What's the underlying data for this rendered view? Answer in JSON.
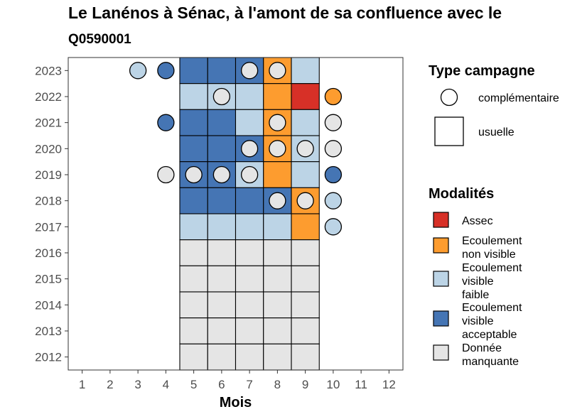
{
  "chart_data": {
    "type": "heatmap",
    "title": "Le Lanénos à Sénac, à l'amont de sa confluence avec le",
    "subtitle": "Q0590001",
    "xlabel": "Mois",
    "ylabel": "",
    "x_ticks": [
      "1",
      "2",
      "3",
      "4",
      "5",
      "6",
      "7",
      "8",
      "9",
      "10",
      "11",
      "12"
    ],
    "y_ticks": [
      "2023",
      "2022",
      "2021",
      "2020",
      "2019",
      "2018",
      "2017",
      "2016",
      "2015",
      "2014",
      "2013",
      "2012"
    ],
    "colors": {
      "Assec": "#d73027",
      "Ecoulement non visible": "#fd9c2f",
      "Ecoulement visible faible": "#bcd4e6",
      "Ecoulement visible acceptable": "#4575b4",
      "Donnée manquante": "#e5e5e5"
    },
    "cells": [
      {
        "year": 2023,
        "month": 5,
        "status": "Ecoulement visible acceptable"
      },
      {
        "year": 2023,
        "month": 6,
        "status": "Ecoulement visible acceptable"
      },
      {
        "year": 2023,
        "month": 7,
        "status": "Ecoulement visible acceptable"
      },
      {
        "year": 2023,
        "month": 8,
        "status": "Ecoulement non visible"
      },
      {
        "year": 2023,
        "month": 9,
        "status": "Ecoulement visible faible"
      },
      {
        "year": 2022,
        "month": 5,
        "status": "Ecoulement visible faible"
      },
      {
        "year": 2022,
        "month": 6,
        "status": "Ecoulement visible faible"
      },
      {
        "year": 2022,
        "month": 7,
        "status": "Ecoulement visible faible"
      },
      {
        "year": 2022,
        "month": 8,
        "status": "Ecoulement non visible"
      },
      {
        "year": 2022,
        "month": 9,
        "status": "Assec"
      },
      {
        "year": 2021,
        "month": 5,
        "status": "Ecoulement visible acceptable"
      },
      {
        "year": 2021,
        "month": 6,
        "status": "Ecoulement visible acceptable"
      },
      {
        "year": 2021,
        "month": 7,
        "status": "Ecoulement visible faible"
      },
      {
        "year": 2021,
        "month": 8,
        "status": "Ecoulement non visible"
      },
      {
        "year": 2021,
        "month": 9,
        "status": "Ecoulement visible faible"
      },
      {
        "year": 2020,
        "month": 5,
        "status": "Ecoulement visible acceptable"
      },
      {
        "year": 2020,
        "month": 6,
        "status": "Ecoulement visible acceptable"
      },
      {
        "year": 2020,
        "month": 7,
        "status": "Ecoulement visible acceptable"
      },
      {
        "year": 2020,
        "month": 8,
        "status": "Ecoulement non visible"
      },
      {
        "year": 2020,
        "month": 9,
        "status": "Ecoulement visible faible"
      },
      {
        "year": 2019,
        "month": 5,
        "status": "Ecoulement visible acceptable"
      },
      {
        "year": 2019,
        "month": 6,
        "status": "Ecoulement visible acceptable"
      },
      {
        "year": 2019,
        "month": 7,
        "status": "Ecoulement visible faible"
      },
      {
        "year": 2019,
        "month": 8,
        "status": "Ecoulement non visible"
      },
      {
        "year": 2019,
        "month": 9,
        "status": "Ecoulement visible faible"
      },
      {
        "year": 2018,
        "month": 5,
        "status": "Ecoulement visible acceptable"
      },
      {
        "year": 2018,
        "month": 6,
        "status": "Ecoulement visible acceptable"
      },
      {
        "year": 2018,
        "month": 7,
        "status": "Ecoulement visible acceptable"
      },
      {
        "year": 2018,
        "month": 8,
        "status": "Ecoulement visible acceptable"
      },
      {
        "year": 2018,
        "month": 9,
        "status": "Ecoulement non visible"
      },
      {
        "year": 2017,
        "month": 5,
        "status": "Ecoulement visible faible"
      },
      {
        "year": 2017,
        "month": 6,
        "status": "Ecoulement visible faible"
      },
      {
        "year": 2017,
        "month": 7,
        "status": "Ecoulement visible faible"
      },
      {
        "year": 2017,
        "month": 8,
        "status": "Ecoulement visible faible"
      },
      {
        "year": 2017,
        "month": 9,
        "status": "Ecoulement non visible"
      },
      {
        "year": 2016,
        "month": 5,
        "status": "Donnée manquante"
      },
      {
        "year": 2016,
        "month": 6,
        "status": "Donnée manquante"
      },
      {
        "year": 2016,
        "month": 7,
        "status": "Donnée manquante"
      },
      {
        "year": 2016,
        "month": 8,
        "status": "Donnée manquante"
      },
      {
        "year": 2016,
        "month": 9,
        "status": "Donnée manquante"
      },
      {
        "year": 2015,
        "month": 5,
        "status": "Donnée manquante"
      },
      {
        "year": 2015,
        "month": 6,
        "status": "Donnée manquante"
      },
      {
        "year": 2015,
        "month": 7,
        "status": "Donnée manquante"
      },
      {
        "year": 2015,
        "month": 8,
        "status": "Donnée manquante"
      },
      {
        "year": 2015,
        "month": 9,
        "status": "Donnée manquante"
      },
      {
        "year": 2014,
        "month": 5,
        "status": "Donnée manquante"
      },
      {
        "year": 2014,
        "month": 6,
        "status": "Donnée manquante"
      },
      {
        "year": 2014,
        "month": 7,
        "status": "Donnée manquante"
      },
      {
        "year": 2014,
        "month": 8,
        "status": "Donnée manquante"
      },
      {
        "year": 2014,
        "month": 9,
        "status": "Donnée manquante"
      },
      {
        "year": 2013,
        "month": 5,
        "status": "Donnée manquante"
      },
      {
        "year": 2013,
        "month": 6,
        "status": "Donnée manquante"
      },
      {
        "year": 2013,
        "month": 7,
        "status": "Donnée manquante"
      },
      {
        "year": 2013,
        "month": 8,
        "status": "Donnée manquante"
      },
      {
        "year": 2013,
        "month": 9,
        "status": "Donnée manquante"
      },
      {
        "year": 2012,
        "month": 5,
        "status": "Donnée manquante"
      },
      {
        "year": 2012,
        "month": 6,
        "status": "Donnée manquante"
      },
      {
        "year": 2012,
        "month": 7,
        "status": "Donnée manquante"
      },
      {
        "year": 2012,
        "month": 8,
        "status": "Donnée manquante"
      },
      {
        "year": 2012,
        "month": 9,
        "status": "Donnée manquante"
      }
    ],
    "points": [
      {
        "year": 2023,
        "month": 3,
        "status": "Ecoulement visible faible"
      },
      {
        "year": 2023,
        "month": 4,
        "status": "Ecoulement visible acceptable"
      },
      {
        "year": 2023,
        "month": 7,
        "status": "Donnée manquante"
      },
      {
        "year": 2023,
        "month": 8,
        "status": "Donnée manquante"
      },
      {
        "year": 2022,
        "month": 6,
        "status": "Donnée manquante"
      },
      {
        "year": 2022,
        "month": 10,
        "status": "Ecoulement non visible"
      },
      {
        "year": 2021,
        "month": 4,
        "status": "Ecoulement visible acceptable"
      },
      {
        "year": 2021,
        "month": 8,
        "status": "Donnée manquante"
      },
      {
        "year": 2021,
        "month": 10,
        "status": "Donnée manquante"
      },
      {
        "year": 2020,
        "month": 7,
        "status": "Donnée manquante"
      },
      {
        "year": 2020,
        "month": 8,
        "status": "Donnée manquante"
      },
      {
        "year": 2020,
        "month": 9,
        "status": "Donnée manquante"
      },
      {
        "year": 2020,
        "month": 10,
        "status": "Donnée manquante"
      },
      {
        "year": 2019,
        "month": 4,
        "status": "Donnée manquante"
      },
      {
        "year": 2019,
        "month": 5,
        "status": "Donnée manquante"
      },
      {
        "year": 2019,
        "month": 6,
        "status": "Donnée manquante"
      },
      {
        "year": 2019,
        "month": 7,
        "status": "Donnée manquante"
      },
      {
        "year": 2019,
        "month": 10,
        "status": "Ecoulement visible acceptable"
      },
      {
        "year": 2018,
        "month": 8,
        "status": "Donnée manquante"
      },
      {
        "year": 2018,
        "month": 9,
        "status": "Donnée manquante"
      },
      {
        "year": 2018,
        "month": 10,
        "status": "Ecoulement visible faible"
      },
      {
        "year": 2017,
        "month": 10,
        "status": "Ecoulement visible faible"
      }
    ],
    "legend_type": {
      "title": "Type campagne",
      "items": [
        {
          "label": "complémentaire",
          "shape": "circle"
        },
        {
          "label": "usuelle",
          "shape": "square"
        }
      ]
    },
    "legend_modalites": {
      "title": "Modalités",
      "items": [
        {
          "lines": [
            "Assec"
          ],
          "key": "Assec"
        },
        {
          "lines": [
            "Ecoulement",
            "non visible"
          ],
          "key": "Ecoulement non visible"
        },
        {
          "lines": [
            "Ecoulement",
            "visible",
            "faible"
          ],
          "key": "Ecoulement visible faible"
        },
        {
          "lines": [
            "Ecoulement",
            "visible",
            "acceptable"
          ],
          "key": "Ecoulement visible acceptable"
        },
        {
          "lines": [
            "Donnée",
            "manquante"
          ],
          "key": "Donnée manquante"
        }
      ]
    },
    "xlim": [
      0.5,
      12.5
    ],
    "ylim": [
      2011.5,
      2023.5
    ],
    "grid": false,
    "legend_position": "right"
  }
}
